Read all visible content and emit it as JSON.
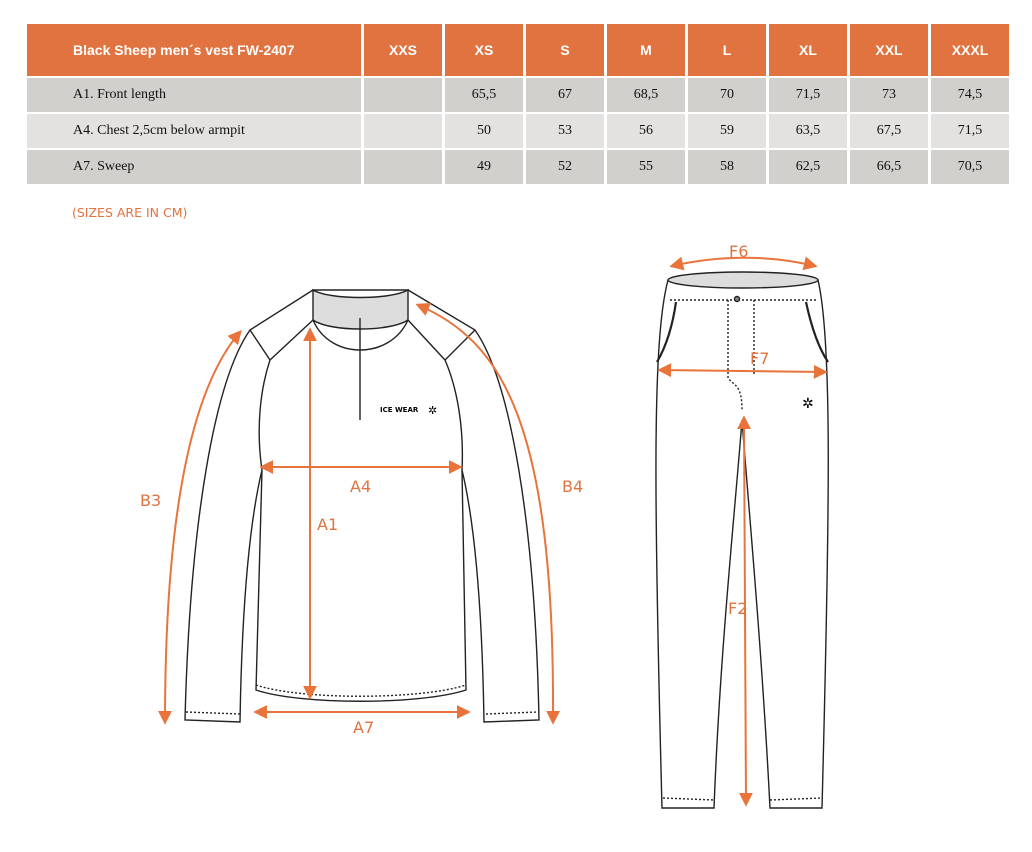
{
  "table": {
    "title": "Black Sheep men´s vest FW-2407",
    "sizes": [
      "XXS",
      "XS",
      "S",
      "M",
      "L",
      "XL",
      "XXL",
      "XXXL"
    ],
    "rows": [
      {
        "label": "A1. Front length",
        "values": [
          "",
          "65,5",
          "67",
          "68,5",
          "70",
          "71,5",
          "73",
          "74,5"
        ]
      },
      {
        "label": "A4. Chest 2,5cm below armpit",
        "values": [
          "",
          "50",
          "53",
          "56",
          "59",
          "63,5",
          "67,5",
          "71,5"
        ]
      },
      {
        "label": "A7. Sweep",
        "values": [
          "",
          "49",
          "52",
          "55",
          "58",
          "62,5",
          "66,5",
          "70,5"
        ]
      }
    ]
  },
  "note": "(SIZES ARE IN CM)",
  "jacket": {
    "logo": "ICE WEAR",
    "labels": {
      "a1": "A1",
      "a4": "A4",
      "a7": "A7",
      "b3": "B3",
      "b4": "B4"
    }
  },
  "pants": {
    "labels": {
      "f2": "F2",
      "f6": "F6",
      "f7": "F7"
    }
  },
  "colors": {
    "accent": "#e07340",
    "row_dark": "#d1d0cd",
    "row_light": "#e3e2e0"
  }
}
